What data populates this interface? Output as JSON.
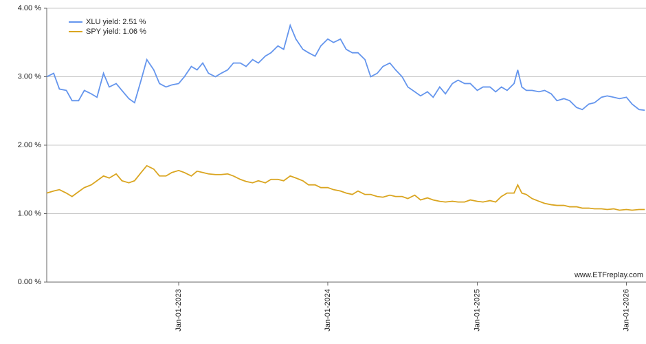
{
  "chart_data": {
    "type": "line",
    "x": [
      "2022-02-12",
      "2022-03-01",
      "2022-03-15",
      "2022-04-01",
      "2022-04-15",
      "2022-05-01",
      "2022-05-15",
      "2022-06-01",
      "2022-06-15",
      "2022-07-01",
      "2022-07-15",
      "2022-08-01",
      "2022-08-15",
      "2022-09-01",
      "2022-09-15",
      "2022-10-01",
      "2022-10-15",
      "2022-11-01",
      "2022-11-15",
      "2022-12-01",
      "2022-12-15",
      "2023-01-01",
      "2023-01-15",
      "2023-02-01",
      "2023-02-15",
      "2023-03-01",
      "2023-03-15",
      "2023-04-01",
      "2023-04-15",
      "2023-05-01",
      "2023-05-15",
      "2023-06-01",
      "2023-06-15",
      "2023-07-01",
      "2023-07-15",
      "2023-08-01",
      "2023-08-15",
      "2023-09-01",
      "2023-09-15",
      "2023-10-01",
      "2023-10-15",
      "2023-11-01",
      "2023-11-15",
      "2023-12-01",
      "2023-12-15",
      "2024-01-01",
      "2024-01-15",
      "2024-02-01",
      "2024-02-15",
      "2024-03-01",
      "2024-03-15",
      "2024-04-01",
      "2024-04-15",
      "2024-05-01",
      "2024-05-15",
      "2024-06-01",
      "2024-06-15",
      "2024-07-01",
      "2024-07-15",
      "2024-08-01",
      "2024-08-15",
      "2024-09-01",
      "2024-09-15",
      "2024-10-01",
      "2024-10-15",
      "2024-11-01",
      "2024-11-15",
      "2024-12-01",
      "2024-12-15",
      "2025-01-01",
      "2025-01-15",
      "2025-02-01",
      "2025-02-15",
      "2025-03-01",
      "2025-03-15",
      "2025-04-01",
      "2025-04-10",
      "2025-04-20",
      "2025-05-01",
      "2025-05-15",
      "2025-06-01",
      "2025-06-15",
      "2025-07-01",
      "2025-07-15",
      "2025-08-01",
      "2025-08-15",
      "2025-09-01",
      "2025-09-15",
      "2025-10-01",
      "2025-10-15",
      "2025-11-01",
      "2025-11-15",
      "2025-12-01",
      "2025-12-15",
      "2026-01-01",
      "2026-01-15",
      "2026-02-01",
      "2026-02-15"
    ],
    "series": [
      {
        "name": "XLU yield: 2.51 %",
        "color": "#6495ed",
        "values": [
          3.0,
          3.05,
          2.82,
          2.8,
          2.65,
          2.65,
          2.8,
          2.75,
          2.7,
          3.05,
          2.85,
          2.9,
          2.8,
          2.68,
          2.62,
          2.95,
          3.25,
          3.1,
          2.9,
          2.85,
          2.88,
          2.9,
          3.0,
          3.15,
          3.1,
          3.2,
          3.05,
          3.0,
          3.05,
          3.1,
          3.2,
          3.2,
          3.15,
          3.25,
          3.2,
          3.3,
          3.35,
          3.45,
          3.4,
          3.75,
          3.55,
          3.4,
          3.35,
          3.3,
          3.45,
          3.55,
          3.5,
          3.55,
          3.4,
          3.35,
          3.35,
          3.25,
          3.0,
          3.05,
          3.15,
          3.2,
          3.1,
          3.0,
          2.85,
          2.78,
          2.72,
          2.78,
          2.7,
          2.85,
          2.75,
          2.9,
          2.95,
          2.9,
          2.9,
          2.8,
          2.85,
          2.85,
          2.78,
          2.85,
          2.8,
          2.9,
          3.1,
          2.85,
          2.8,
          2.8,
          2.78,
          2.8,
          2.75,
          2.65,
          2.68,
          2.65,
          2.55,
          2.52,
          2.6,
          2.62,
          2.7,
          2.72,
          2.7,
          2.68,
          2.7,
          2.6,
          2.52,
          2.51
        ]
      },
      {
        "name": "SPY yield: 1.06 %",
        "color": "#daa520",
        "values": [
          1.3,
          1.33,
          1.35,
          1.3,
          1.25,
          1.32,
          1.38,
          1.42,
          1.48,
          1.55,
          1.52,
          1.58,
          1.48,
          1.45,
          1.48,
          1.6,
          1.7,
          1.65,
          1.55,
          1.55,
          1.6,
          1.63,
          1.6,
          1.55,
          1.62,
          1.6,
          1.58,
          1.57,
          1.57,
          1.58,
          1.55,
          1.5,
          1.47,
          1.45,
          1.48,
          1.45,
          1.5,
          1.5,
          1.48,
          1.55,
          1.52,
          1.48,
          1.42,
          1.42,
          1.38,
          1.38,
          1.35,
          1.33,
          1.3,
          1.28,
          1.33,
          1.28,
          1.28,
          1.25,
          1.24,
          1.27,
          1.25,
          1.25,
          1.22,
          1.27,
          1.2,
          1.23,
          1.2,
          1.18,
          1.17,
          1.18,
          1.17,
          1.17,
          1.2,
          1.18,
          1.17,
          1.19,
          1.17,
          1.25,
          1.3,
          1.3,
          1.42,
          1.3,
          1.28,
          1.22,
          1.18,
          1.15,
          1.13,
          1.12,
          1.12,
          1.1,
          1.1,
          1.08,
          1.08,
          1.07,
          1.07,
          1.06,
          1.07,
          1.05,
          1.06,
          1.05,
          1.06,
          1.06
        ]
      }
    ],
    "xlim": [
      "2022-02-12",
      "2026-02-18"
    ],
    "xticks": [
      {
        "value": "2023-01-01",
        "label": "Jan-01-2023"
      },
      {
        "value": "2024-01-01",
        "label": "Jan-01-2024"
      },
      {
        "value": "2025-01-01",
        "label": "Jan-01-2025"
      },
      {
        "value": "2026-01-01",
        "label": "Jan-01-2026"
      }
    ],
    "ylim": [
      0,
      4
    ],
    "yticks": [
      {
        "value": 0,
        "label": "0.00 %"
      },
      {
        "value": 1,
        "label": "1.00 %"
      },
      {
        "value": 2,
        "label": "2.00 %"
      },
      {
        "value": 3,
        "label": "3.00 %"
      },
      {
        "value": 4,
        "label": "4.00 %"
      }
    ],
    "grid": true,
    "legend": "top-left",
    "watermark": "www.ETFreplay.com"
  }
}
